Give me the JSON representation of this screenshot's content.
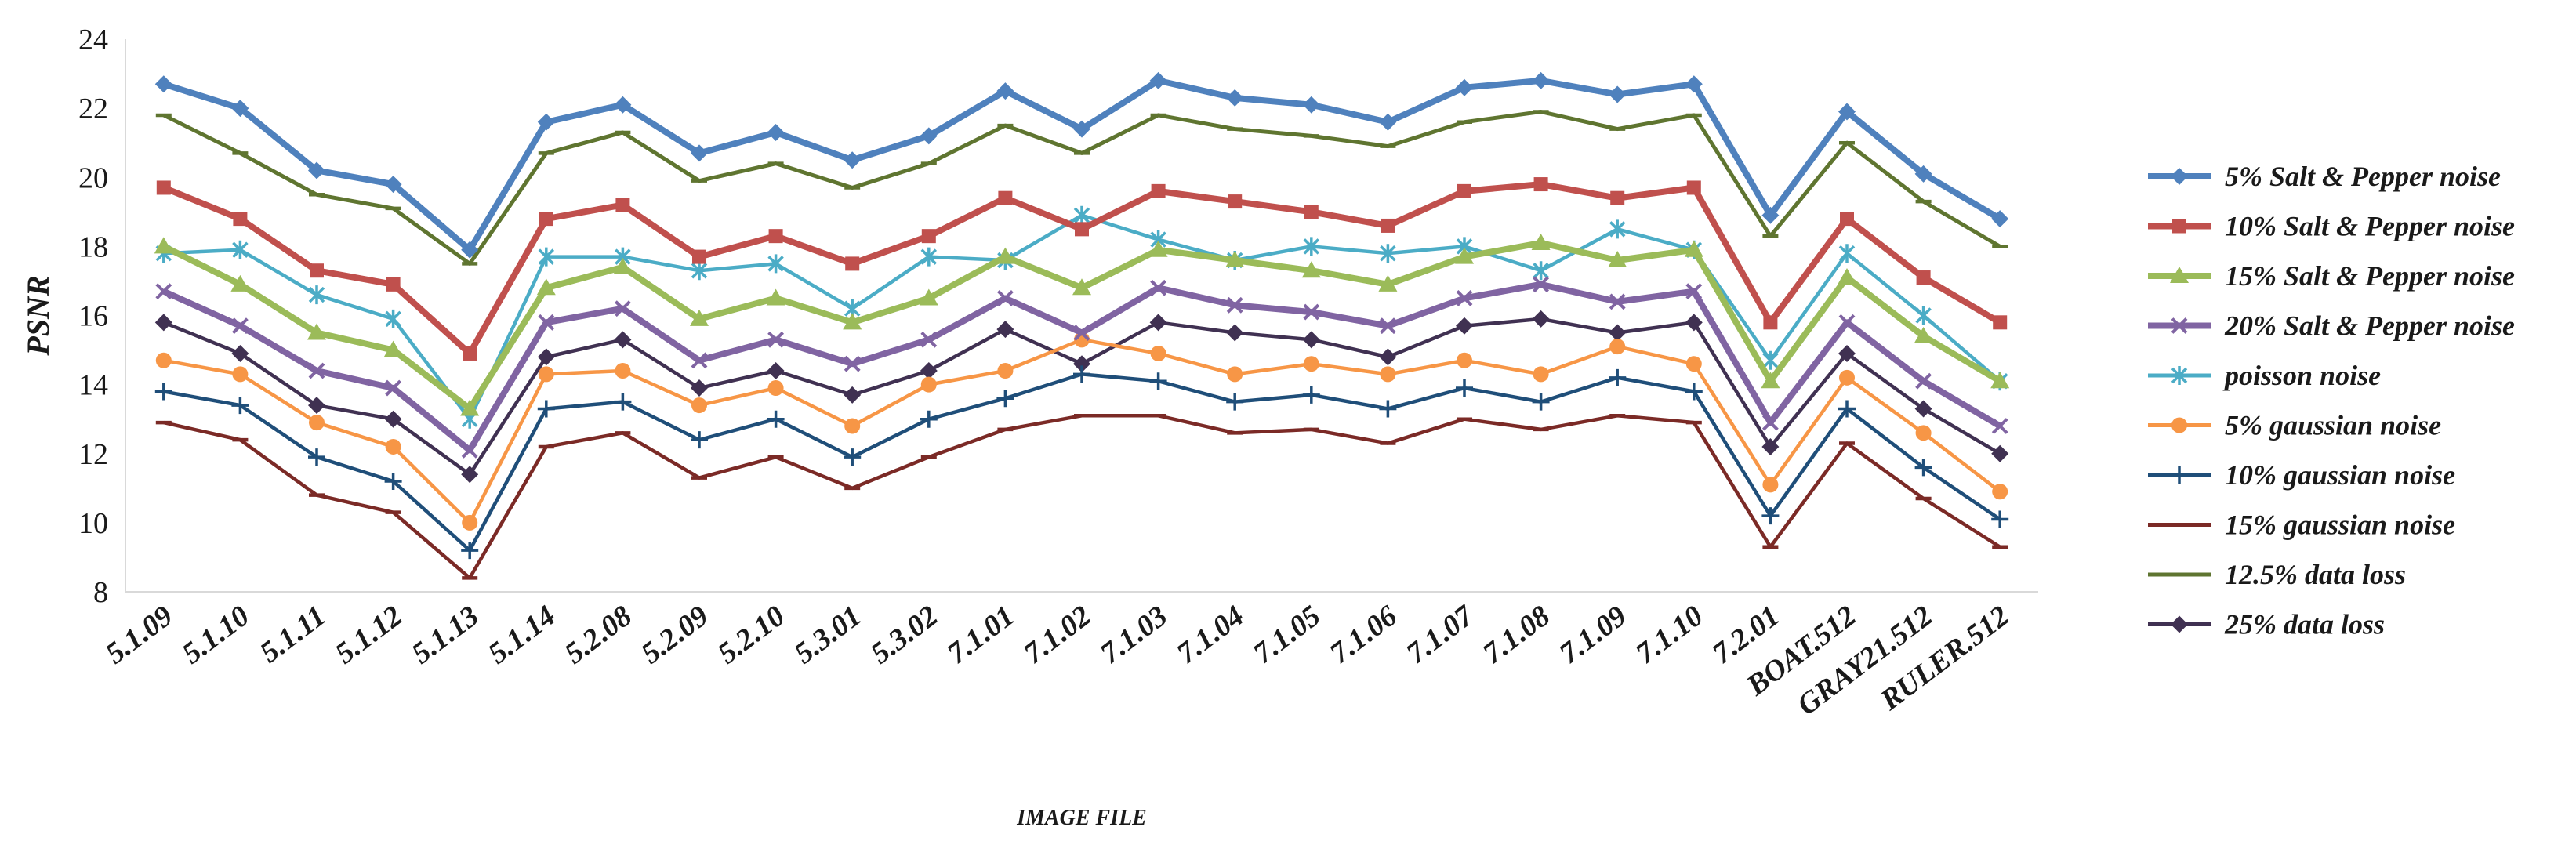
{
  "chart_data": {
    "type": "line",
    "xlabel": "IMAGE FILE",
    "ylabel": "PSNR",
    "ylim": [
      8,
      24
    ],
    "yticks": [
      8,
      10,
      12,
      14,
      16,
      18,
      20,
      22,
      24
    ],
    "grid": false,
    "legend_position": "right",
    "categories": [
      "5.1.09",
      "5.1.10",
      "5.1.11",
      "5.1.12",
      "5.1.13",
      "5.1.14",
      "5.2.08",
      "5.2.09",
      "5.2.10",
      "5.3.01",
      "5.3.02",
      "7.1.01",
      "7.1.02",
      "7.1.03",
      "7.1.04",
      "7.1.05",
      "7.1.06",
      "7.1.07",
      "7.1.08",
      "7.1.09",
      "7.1.10",
      "7.2.01",
      "BOAT.512",
      "GRAY21.512",
      "RULER.512"
    ],
    "series": [
      {
        "name": "5% Salt & Pepper noise",
        "color": "#4f81bd",
        "marker": "diamond",
        "values": [
          22.7,
          22.0,
          20.2,
          19.8,
          17.9,
          21.6,
          22.1,
          20.7,
          21.3,
          20.5,
          21.2,
          22.5,
          21.4,
          22.8,
          22.3,
          22.1,
          21.6,
          22.6,
          22.8,
          22.4,
          22.7,
          18.9,
          21.9,
          20.1,
          18.8
        ]
      },
      {
        "name": "10% Salt & Pepper noise",
        "color": "#c0504d",
        "marker": "square",
        "values": [
          19.7,
          18.8,
          17.3,
          16.9,
          14.9,
          18.8,
          19.2,
          17.7,
          18.3,
          17.5,
          18.3,
          19.4,
          18.5,
          19.6,
          19.3,
          19.0,
          18.6,
          19.6,
          19.8,
          19.4,
          19.7,
          15.8,
          18.8,
          17.1,
          15.8
        ]
      },
      {
        "name": "15% Salt & Pepper noise",
        "color": "#9bbb59",
        "marker": "triangle",
        "values": [
          18.0,
          16.9,
          15.5,
          15.0,
          13.3,
          16.8,
          17.4,
          15.9,
          16.5,
          15.8,
          16.5,
          17.7,
          16.8,
          17.9,
          17.6,
          17.3,
          16.9,
          17.7,
          18.1,
          17.6,
          17.9,
          14.1,
          17.1,
          15.4,
          14.1
        ]
      },
      {
        "name": "20% Salt & Pepper noise",
        "color": "#8064a2",
        "marker": "x",
        "values": [
          16.7,
          15.7,
          14.4,
          13.9,
          12.1,
          15.8,
          16.2,
          14.7,
          15.3,
          14.6,
          15.3,
          16.5,
          15.5,
          16.8,
          16.3,
          16.1,
          15.7,
          16.5,
          16.9,
          16.4,
          16.7,
          12.9,
          15.8,
          14.1,
          12.8
        ]
      },
      {
        "name": "poisson noise",
        "color": "#4bacc6",
        "marker": "star",
        "values": [
          17.8,
          17.9,
          16.6,
          15.9,
          13.0,
          17.7,
          17.7,
          17.3,
          17.5,
          16.2,
          17.7,
          17.6,
          18.9,
          18.2,
          17.6,
          18.0,
          17.8,
          18.0,
          17.3,
          18.5,
          17.9,
          14.7,
          17.8,
          16.0,
          14.1
        ]
      },
      {
        "name": "5% gaussian noise",
        "color": "#f79646",
        "marker": "circle",
        "values": [
          14.7,
          14.3,
          12.9,
          12.2,
          10.0,
          14.3,
          14.4,
          13.4,
          13.9,
          12.8,
          14.0,
          14.4,
          15.3,
          14.9,
          14.3,
          14.6,
          14.3,
          14.7,
          14.3,
          15.1,
          14.6,
          11.1,
          14.2,
          12.6,
          10.9
        ]
      },
      {
        "name": "10% gaussian noise",
        "color": "#1f4e79",
        "marker": "plus",
        "values": [
          13.8,
          13.4,
          11.9,
          11.2,
          9.2,
          13.3,
          13.5,
          12.4,
          13.0,
          11.9,
          13.0,
          13.6,
          14.3,
          14.1,
          13.5,
          13.7,
          13.3,
          13.9,
          13.5,
          14.2,
          13.8,
          10.2,
          13.3,
          11.6,
          10.1
        ]
      },
      {
        "name": "15% gaussian noise",
        "color": "#7b2a26",
        "marker": "dash",
        "values": [
          12.9,
          12.4,
          10.8,
          10.3,
          8.4,
          12.2,
          12.6,
          11.3,
          11.9,
          11.0,
          11.9,
          12.7,
          13.1,
          13.1,
          12.6,
          12.7,
          12.3,
          13.0,
          12.7,
          13.1,
          12.9,
          9.3,
          12.3,
          10.7,
          9.3
        ]
      },
      {
        "name": "12.5% data loss",
        "color": "#5f7530",
        "marker": "dash",
        "values": [
          21.8,
          20.7,
          19.5,
          19.1,
          17.5,
          20.7,
          21.3,
          19.9,
          20.4,
          19.7,
          20.4,
          21.5,
          20.7,
          21.8,
          21.4,
          21.2,
          20.9,
          21.6,
          21.9,
          21.4,
          21.8,
          18.3,
          21.0,
          19.3,
          18.0
        ]
      },
      {
        "name": "25% data loss",
        "color": "#403152",
        "marker": "diamond",
        "values": [
          15.8,
          14.9,
          13.4,
          13.0,
          11.4,
          14.8,
          15.3,
          13.9,
          14.4,
          13.7,
          14.4,
          15.6,
          14.6,
          15.8,
          15.5,
          15.3,
          14.8,
          15.7,
          15.9,
          15.5,
          15.8,
          12.2,
          14.9,
          13.3,
          12.0
        ]
      }
    ]
  }
}
